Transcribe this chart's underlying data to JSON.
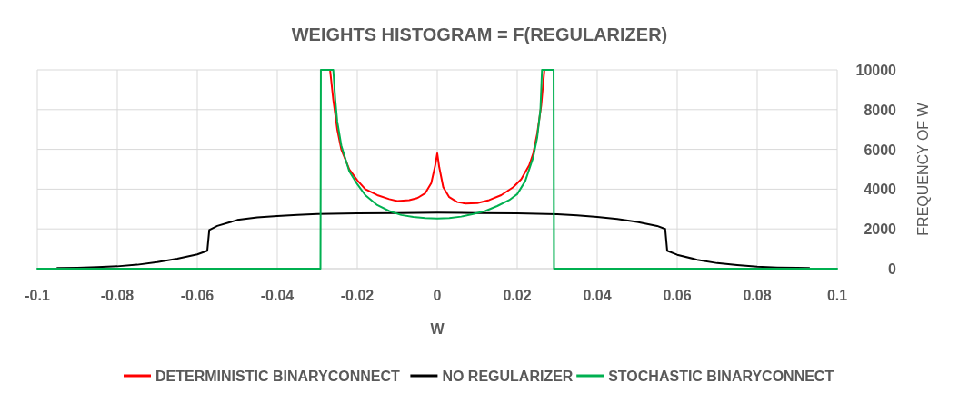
{
  "chart_data": {
    "type": "line",
    "title": "WEIGHTS HISTOGRAM = F(REGULARIZER)",
    "xlabel": "W",
    "ylabel": "FREQUENCY  OF W",
    "xlim": [
      -0.1,
      0.1
    ],
    "xticks": [
      -0.1,
      -0.08,
      -0.06,
      -0.04,
      -0.02,
      0,
      0.02,
      0.04,
      0.06,
      0.08,
      0.1
    ],
    "ylim": [
      0,
      10000
    ],
    "yticks": [
      0,
      2000,
      4000,
      6000,
      8000,
      10000
    ],
    "grid": true,
    "legend": "bottom",
    "series": [
      {
        "name": "DETERMINISTIC BINARYCONNECT",
        "color": "#ff0000",
        "x": [
          -0.0268,
          -0.026,
          -0.025,
          -0.024,
          -0.022,
          -0.02,
          -0.018,
          -0.015,
          -0.012,
          -0.01,
          -0.007,
          -0.005,
          -0.003,
          -0.0015,
          -0.0005,
          0,
          0.0005,
          0.0015,
          0.003,
          0.005,
          0.007,
          0.01,
          0.013,
          0.016,
          0.019,
          0.021,
          0.023,
          0.024,
          0.025,
          0.026,
          0.0268
        ],
        "values": [
          10000,
          8500,
          7000,
          6000,
          5000,
          4450,
          4000,
          3700,
          3500,
          3400,
          3450,
          3550,
          3800,
          4300,
          5200,
          5800,
          5100,
          4100,
          3600,
          3350,
          3280,
          3300,
          3450,
          3700,
          4100,
          4500,
          5200,
          5800,
          6800,
          8200,
          10000
        ]
      },
      {
        "name": "NO REGULARIZER",
        "color": "#000000",
        "x": [
          -0.095,
          -0.09,
          -0.085,
          -0.08,
          -0.075,
          -0.07,
          -0.065,
          -0.06,
          -0.0575,
          -0.057,
          -0.055,
          -0.05,
          -0.045,
          -0.04,
          -0.035,
          -0.03,
          -0.02,
          -0.01,
          0,
          0.01,
          0.02,
          0.03,
          0.035,
          0.04,
          0.045,
          0.05,
          0.055,
          0.057,
          0.0575,
          0.06,
          0.065,
          0.07,
          0.075,
          0.08,
          0.085,
          0.09,
          0.093
        ],
        "values": [
          30,
          50,
          80,
          120,
          200,
          330,
          500,
          720,
          900,
          1950,
          2150,
          2450,
          2580,
          2650,
          2700,
          2750,
          2780,
          2800,
          2820,
          2800,
          2780,
          2740,
          2680,
          2600,
          2500,
          2350,
          2150,
          2000,
          900,
          700,
          450,
          280,
          180,
          100,
          60,
          40,
          30
        ]
      },
      {
        "name": "STOCHASTIC BINARYCONNECT",
        "color": "#00b050",
        "x": [
          -0.1,
          -0.0292,
          -0.0291,
          -0.026,
          -0.0255,
          -0.025,
          -0.024,
          -0.022,
          -0.02,
          -0.018,
          -0.015,
          -0.012,
          -0.009,
          -0.006,
          -0.003,
          0,
          0.003,
          0.006,
          0.009,
          0.012,
          0.015,
          0.018,
          0.02,
          0.022,
          0.024,
          0.025,
          0.0258,
          0.0262,
          0.0291,
          0.0292,
          0.1
        ],
        "values": [
          0,
          0,
          10000,
          10000,
          8500,
          7400,
          6200,
          4900,
          4250,
          3700,
          3200,
          2900,
          2700,
          2600,
          2550,
          2520,
          2550,
          2620,
          2750,
          2900,
          3150,
          3450,
          3750,
          4400,
          5600,
          6600,
          8000,
          10000,
          10000,
          0,
          0
        ]
      }
    ]
  }
}
